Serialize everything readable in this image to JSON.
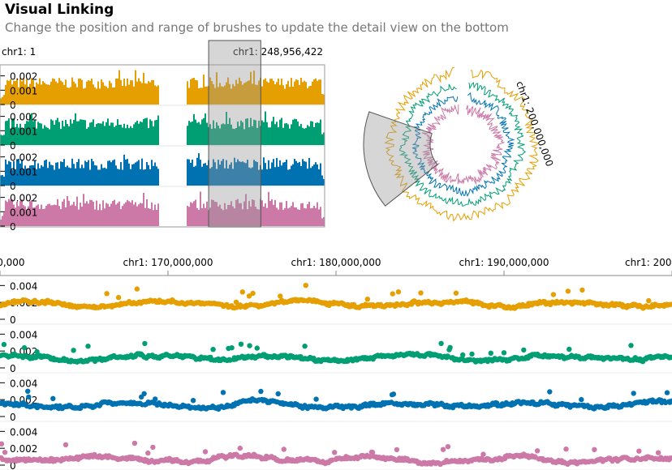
{
  "header": {
    "title": "Visual Linking",
    "subtitle": "Change the position and range of brushes to update the detail view on the bottom"
  },
  "colors": {
    "series": [
      "#E69F00",
      "#009E73",
      "#0072B2",
      "#CC79A7"
    ],
    "brush": "#999999"
  },
  "chart_data": [
    {
      "name": "overview-tracks",
      "type": "bar",
      "x_start_label": "chr1: 1",
      "x_end_label": "chr1: 248,956,422",
      "xlim": [
        1,
        248956422
      ],
      "ylim": [
        0,
        0.0026
      ],
      "y_ticks": [
        "0.002",
        "0.001",
        "0"
      ],
      "brush": [
        160000000,
        200000000
      ],
      "gap": [
        122000000,
        143000000
      ],
      "series_count": 4
    },
    {
      "name": "circular-overview",
      "type": "line",
      "label": "chr1: 200,000,000",
      "brush": [
        160000000,
        200000000
      ],
      "series_count": 4
    },
    {
      "name": "detail-tracks",
      "type": "scatter",
      "x_labels": [
        "0,000,000",
        "chr1: 170,000,000",
        "chr1: 180,000,000",
        "chr1: 190,000,000",
        "chr1: 200"
      ],
      "x_ticks": [
        160000000,
        170000000,
        180000000,
        190000000,
        200000000
      ],
      "xlim": [
        160000000,
        200000000
      ],
      "ylim": [
        0,
        0.0048
      ],
      "y_ticks": [
        "0.004",
        "0.002",
        "0"
      ],
      "series_count": 4
    }
  ]
}
